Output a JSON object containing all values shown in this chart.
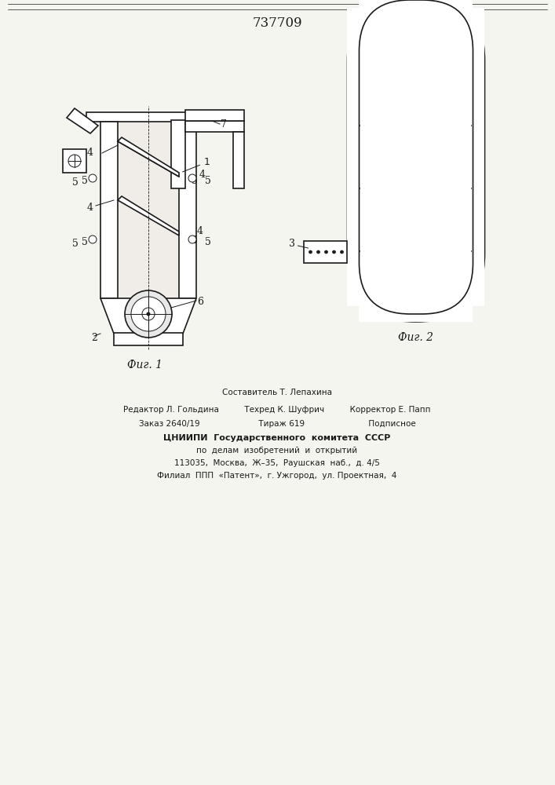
{
  "title": "737709",
  "fig1_label": "Фиг. 1",
  "fig2_label": "Фиг. 2",
  "bg_color": "#f5f5f0",
  "line_color": "#1a1a1a",
  "hatch_color": "#333333",
  "footer_lines": [
    "Составитель Т. Лепахина",
    "Редактор Л. Гольдина          Техред К. Шуфрич          Корректор Е. Папп",
    "Заказ 2640/19                       Тираж 619                         Подписное",
    "ЦНИИПИ  Государственного  комитета  СССР",
    "по  делам  изобретений  и  открытий",
    "113035,  Москва,  Ж–35,  Раушская  наб.,  д. 4/5",
    "Филиал  ППП  «Патент»,  г. Ужгород,  ул. Проектная,  4"
  ]
}
